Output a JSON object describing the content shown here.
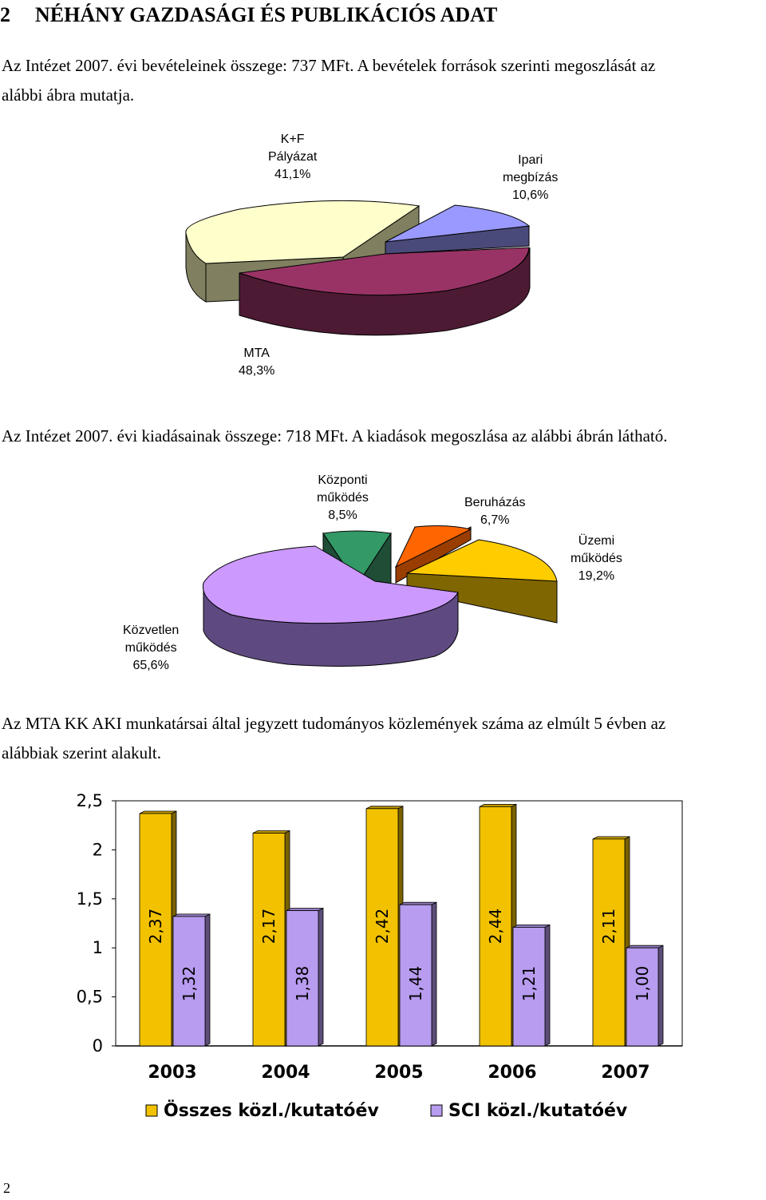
{
  "heading": {
    "number": "2",
    "title": "NÉHÁNY GAZDASÁGI ÉS PUBLIKÁCIÓS ADAT"
  },
  "para1": {
    "line1": "Az Intézet 2007. évi bevételeinek összege: 737 MFt. A bevételek források szerinti megoszlását az",
    "line2": "alábbi ábra mutatja."
  },
  "para2": {
    "line1": "Az Intézet 2007. évi kiadásainak összege: 718 MFt. A kiadások megoszlása az alábbi ábrán látható."
  },
  "para3": {
    "line1": "Az MTA KK AKI munkatársai által jegyzett tudományos közlemények száma az elmúlt 5 évben az",
    "line2": "alábbiak szerint alakult."
  },
  "page_number": "2",
  "chart_data": [
    {
      "type": "pie",
      "title": "",
      "slices": [
        {
          "label": [
            "K+F",
            "Pályázat",
            "41,1%"
          ],
          "value": 41.1,
          "color": "#FFFFCC"
        },
        {
          "label": [
            "Ipari",
            "megbízás",
            "10,6%"
          ],
          "value": 10.6,
          "color": "#9999FF"
        },
        {
          "label": [
            "MTA",
            "48,3%"
          ],
          "value": 48.3,
          "color": "#993366"
        }
      ]
    },
    {
      "type": "pie",
      "title": "",
      "slices": [
        {
          "label": [
            "Központi",
            "működés",
            "8,5%"
          ],
          "value": 8.5,
          "color": "#339966"
        },
        {
          "label": [
            "Beruházás",
            "6,7%"
          ],
          "value": 6.7,
          "color": "#FF6600"
        },
        {
          "label": [
            "Üzemi",
            "működés",
            "19,2%"
          ],
          "value": 19.2,
          "color": "#FFCC00"
        },
        {
          "label": [
            "Közvetlen",
            "működés",
            "65,6%"
          ],
          "value": 65.6,
          "color": "#CC99FF"
        }
      ]
    },
    {
      "type": "bar",
      "title": "",
      "categories": [
        "2003",
        "2004",
        "2005",
        "2006",
        "2007"
      ],
      "series": [
        {
          "name": "Összes közl./kutatóév",
          "values": [
            2.37,
            2.17,
            2.42,
            2.44,
            2.11
          ],
          "labels": [
            "2,37",
            "2,17",
            "2,42",
            "2,44",
            "2,11"
          ],
          "color": "#F2C200"
        },
        {
          "name": "SCI közl./kutatóév",
          "values": [
            1.32,
            1.38,
            1.44,
            1.21,
            1.0
          ],
          "labels": [
            "1,32",
            "1,38",
            "1,44",
            "1,21",
            "1,00"
          ],
          "color": "#B89CF0"
        }
      ],
      "ylim": [
        0,
        2.5
      ],
      "yticks": [
        "0",
        "0,5",
        "1",
        "1,5",
        "2",
        "2,5"
      ],
      "grid": false,
      "legend": "bottom"
    }
  ]
}
